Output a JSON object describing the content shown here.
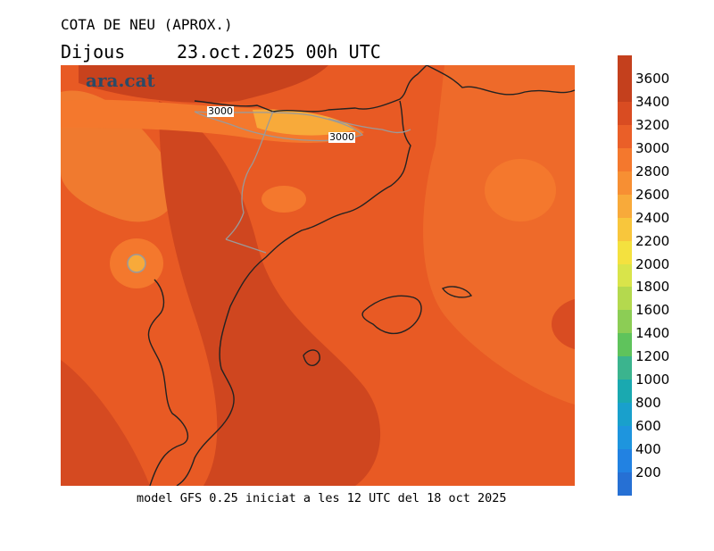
{
  "title": "COTA DE NEU (APROX.)",
  "day": "Dijous",
  "date": "23.oct.2025 00h UTC",
  "logo": "ara.cat",
  "footer": "model GFS 0.25 iniciat a les 12 UTC del 18 oct 2025",
  "contour_labels": [
    "3000",
    "3000"
  ],
  "legend": {
    "unit": "m",
    "levels": [
      {
        "label": "3600",
        "color": "#c4401d"
      },
      {
        "label": "3400",
        "color": "#d94c22"
      },
      {
        "label": "3200",
        "color": "#ea5f28"
      },
      {
        "label": "3000",
        "color": "#f4782d"
      },
      {
        "label": "2800",
        "color": "#f78f33"
      },
      {
        "label": "2600",
        "color": "#f8aa3a"
      },
      {
        "label": "2400",
        "color": "#f8c63c"
      },
      {
        "label": "2200",
        "color": "#f4e13f"
      },
      {
        "label": "2000",
        "color": "#d9e44a"
      },
      {
        "label": "1800",
        "color": "#b4d94e"
      },
      {
        "label": "1600",
        "color": "#8ccd55"
      },
      {
        "label": "1400",
        "color": "#5fc35c"
      },
      {
        "label": "1200",
        "color": "#3bb48e"
      },
      {
        "label": "1000",
        "color": "#1aa9b0"
      },
      {
        "label": "800",
        "color": "#19a0cc"
      },
      {
        "label": "600",
        "color": "#1e95de"
      },
      {
        "label": "400",
        "color": "#2282e2"
      },
      {
        "label": "200",
        "color": "#2670d4"
      }
    ]
  }
}
